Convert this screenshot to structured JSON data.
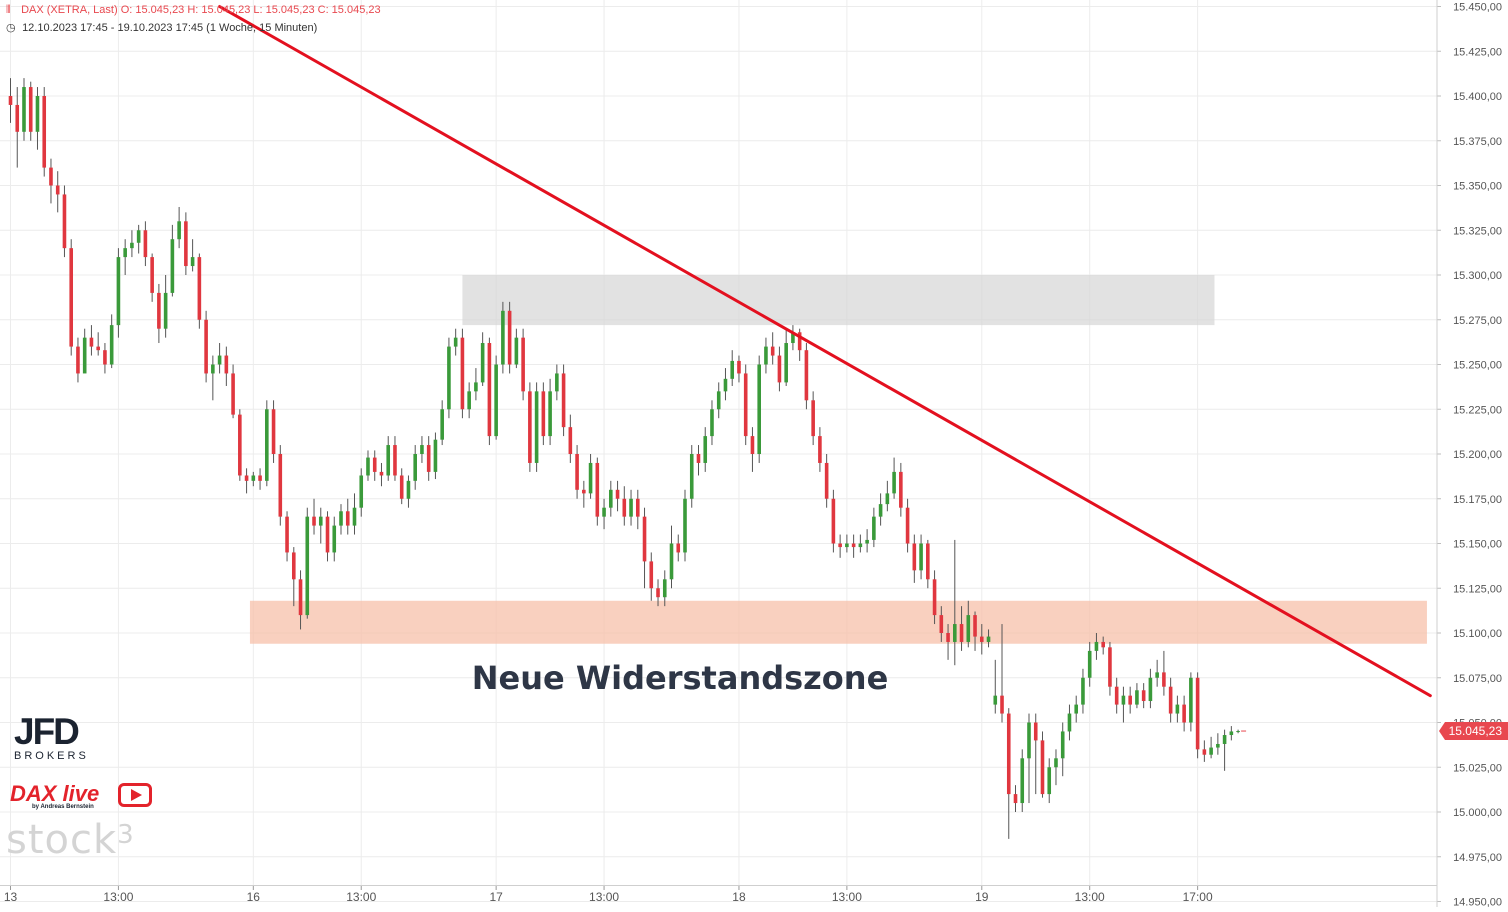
{
  "header": {
    "symbol_line": "DAX (XETRA, Last)  O: 15.045,23  H: 15.045,23  L: 15.045,23  C: 15.045,23",
    "range_line": "12.10.2023 17:45 - 19.10.2023 17:45   (1 Woche, 15 Minuten)"
  },
  "logos": {
    "jfd": "JFD",
    "jfd_sub": "BROKERS",
    "dax_live": "DAX live",
    "dax_live_sub": "by Andreas Bernstein",
    "stock3": "stock",
    "stock3_sup": "3"
  },
  "colors": {
    "up": "#3a9a3a",
    "down": "#e0373f",
    "trendline": "#e3101f",
    "resistance_zone": "#f7c0aa",
    "upper_zone": "#d6d6d6",
    "grid": "#ececec",
    "annotation": "#2e3646",
    "price_badge": "#e8484f"
  },
  "chart_data": {
    "type": "candlestick",
    "instrument": "DAX (XETRA, Last)",
    "interval": "15 Minuten",
    "ylim": [
      14950,
      15450
    ],
    "y_ticks": [
      "15.450,00",
      "15.425,00",
      "15.400,00",
      "15.375,00",
      "15.350,00",
      "15.325,00",
      "15.300,00",
      "15.275,00",
      "15.250,00",
      "15.225,00",
      "15.200,00",
      "15.175,00",
      "15.150,00",
      "15.125,00",
      "15.100,00",
      "15.075,00",
      "15.050,00",
      "15.025,00",
      "15.000,00",
      "14.975,00",
      "14.950,00"
    ],
    "x_ticks": [
      {
        "label": "13",
        "bar": 0
      },
      {
        "label": "13:00",
        "bar": 16
      },
      {
        "label": "16",
        "bar": 36
      },
      {
        "label": "13:00",
        "bar": 52
      },
      {
        "label": "17",
        "bar": 72
      },
      {
        "label": "13:00",
        "bar": 88
      },
      {
        "label": "18",
        "bar": 108
      },
      {
        "label": "13:00",
        "bar": 124
      },
      {
        "label": "19",
        "bar": 144
      },
      {
        "label": "13:00",
        "bar": 160
      },
      {
        "label": "17:00",
        "bar": 176
      }
    ],
    "last_price": 15045.23,
    "last_price_label": "15.045,23",
    "annotations": [
      {
        "type": "zone",
        "label": "",
        "y_from": 15272,
        "y_to": 15300,
        "bar_from": 67,
        "bar_to": 178.5
      },
      {
        "type": "zone",
        "label": "Neue Widerstandszone",
        "y_from": 15094,
        "y_to": 15118,
        "bar_from": 35.5,
        "bar_to": 210
      }
    ],
    "zone_label": "Neue Widerstandszone",
    "trendline": {
      "from": {
        "bar": 31,
        "y": 15450
      },
      "to": {
        "bar": 210.5,
        "y": 15065
      }
    },
    "candles": [
      [
        15400,
        15395,
        15410,
        15385
      ],
      [
        15395,
        15380,
        15405,
        15360
      ],
      [
        15380,
        15405,
        15410,
        15375
      ],
      [
        15405,
        15380,
        15408,
        15375
      ],
      [
        15380,
        15400,
        15405,
        15370
      ],
      [
        15400,
        15360,
        15405,
        15355
      ],
      [
        15360,
        15350,
        15365,
        15340
      ],
      [
        15350,
        15345,
        15358,
        15335
      ],
      [
        15345,
        15315,
        15350,
        15310
      ],
      [
        15315,
        15260,
        15320,
        15255
      ],
      [
        15260,
        15245,
        15265,
        15240
      ],
      [
        15245,
        15265,
        15270,
        15258
      ],
      [
        15265,
        15260,
        15272,
        15255
      ],
      [
        15260,
        15258,
        15268,
        15255
      ],
      [
        15258,
        15250,
        15262,
        15245
      ],
      [
        15250,
        15272,
        15278,
        15248
      ],
      [
        15272,
        15310,
        15315,
        15265
      ],
      [
        15310,
        15315,
        15320,
        15300
      ],
      [
        15315,
        15318,
        15325,
        15310
      ],
      [
        15318,
        15325,
        15328,
        15312
      ],
      [
        15325,
        15310,
        15330,
        15305
      ],
      [
        15310,
        15290,
        15312,
        15285
      ],
      [
        15290,
        15270,
        15295,
        15262
      ],
      [
        15270,
        15290,
        15300,
        15265
      ],
      [
        15290,
        15320,
        15328,
        15288
      ],
      [
        15320,
        15330,
        15338,
        15315
      ],
      [
        15330,
        15305,
        15335,
        15300
      ],
      [
        15305,
        15310,
        15320,
        15302
      ],
      [
        15310,
        15275,
        15312,
        15270
      ],
      [
        15275,
        15245,
        15280,
        15240
      ],
      [
        15245,
        15250,
        15255,
        15230
      ],
      [
        15250,
        15255,
        15262,
        15245
      ],
      [
        15255,
        15245,
        15260,
        15238
      ],
      [
        15245,
        15222,
        15250,
        15220
      ],
      [
        15222,
        15188,
        15225,
        15185
      ],
      [
        15188,
        15185,
        15192,
        15178
      ],
      [
        15185,
        15188,
        15190,
        15182
      ],
      [
        15188,
        15185,
        15192,
        15180
      ],
      [
        15185,
        15225,
        15230,
        15182
      ],
      [
        15225,
        15200,
        15230,
        15195
      ],
      [
        15200,
        15165,
        15205,
        15160
      ],
      [
        15165,
        15145,
        15168,
        15140
      ],
      [
        15145,
        15130,
        15148,
        15115
      ],
      [
        15130,
        15110,
        15135,
        15102
      ],
      [
        15110,
        15165,
        15170,
        15108
      ],
      [
        15165,
        15160,
        15175,
        15155
      ],
      [
        15160,
        15165,
        15170,
        15150
      ],
      [
        15165,
        15145,
        15168,
        15140
      ],
      [
        15145,
        15160,
        15165,
        15140
      ],
      [
        15160,
        15168,
        15172,
        15155
      ],
      [
        15168,
        15160,
        15175,
        15155
      ],
      [
        15160,
        15170,
        15178,
        15155
      ],
      [
        15170,
        15188,
        15192,
        15165
      ],
      [
        15188,
        15198,
        15202,
        15185
      ],
      [
        15198,
        15190,
        15202,
        15185
      ],
      [
        15190,
        15188,
        15195,
        15182
      ],
      [
        15188,
        15205,
        15210,
        15185
      ],
      [
        15205,
        15188,
        15210,
        15185
      ],
      [
        15188,
        15175,
        15192,
        15172
      ],
      [
        15175,
        15185,
        15188,
        15170
      ],
      [
        15185,
        15200,
        15205,
        15180
      ],
      [
        15200,
        15205,
        15210,
        15195
      ],
      [
        15205,
        15190,
        15210,
        15185
      ],
      [
        15190,
        15208,
        15212,
        15186
      ],
      [
        15208,
        15225,
        15230,
        15205
      ],
      [
        15225,
        15260,
        15265,
        15220
      ],
      [
        15260,
        15265,
        15270,
        15255
      ],
      [
        15265,
        15225,
        15270,
        15220
      ],
      [
        15225,
        15235,
        15240,
        15220
      ],
      [
        15235,
        15240,
        15248,
        15230
      ],
      [
        15240,
        15262,
        15268,
        15238
      ],
      [
        15262,
        15210,
        15265,
        15205
      ],
      [
        15210,
        15250,
        15255,
        15208
      ],
      [
        15250,
        15280,
        15285,
        15245
      ],
      [
        15280,
        15250,
        15285,
        15245
      ],
      [
        15250,
        15265,
        15270,
        15248
      ],
      [
        15265,
        15235,
        15270,
        15230
      ],
      [
        15235,
        15195,
        15240,
        15190
      ],
      [
        15195,
        15235,
        15240,
        15190
      ],
      [
        15235,
        15210,
        15240,
        15205
      ],
      [
        15210,
        15235,
        15242,
        15205
      ],
      [
        15235,
        15245,
        15250,
        15230
      ],
      [
        15245,
        15215,
        15250,
        15210
      ],
      [
        15215,
        15200,
        15222,
        15195
      ],
      [
        15200,
        15180,
        15205,
        15175
      ],
      [
        15180,
        15178,
        15185,
        15170
      ],
      [
        15178,
        15195,
        15200,
        15175
      ],
      [
        15195,
        15165,
        15198,
        15160
      ],
      [
        15165,
        15170,
        15175,
        15158
      ],
      [
        15170,
        15180,
        15185,
        15165
      ],
      [
        15180,
        15175,
        15185,
        15168
      ],
      [
        15175,
        15165,
        15182,
        15160
      ],
      [
        15165,
        15175,
        15180,
        15160
      ],
      [
        15175,
        15165,
        15180,
        15158
      ],
      [
        15165,
        15140,
        15170,
        15125
      ],
      [
        15140,
        15125,
        15145,
        15118
      ],
      [
        15125,
        15120,
        15130,
        15115
      ],
      [
        15120,
        15130,
        15135,
        15115
      ],
      [
        15130,
        15150,
        15160,
        15125
      ],
      [
        15150,
        15145,
        15155,
        15140
      ],
      [
        15145,
        15175,
        15180,
        15140
      ],
      [
        15175,
        15200,
        15205,
        15170
      ],
      [
        15200,
        15195,
        15205,
        15188
      ],
      [
        15195,
        15210,
        15215,
        15190
      ],
      [
        15210,
        15225,
        15230,
        15205
      ],
      [
        15225,
        15235,
        15240,
        15220
      ],
      [
        15235,
        15242,
        15248,
        15230
      ],
      [
        15242,
        15252,
        15258,
        15238
      ],
      [
        15252,
        15245,
        15255,
        15240
      ],
      [
        15245,
        15210,
        15250,
        15205
      ],
      [
        15210,
        15200,
        15215,
        15190
      ],
      [
        15200,
        15250,
        15255,
        15195
      ],
      [
        15250,
        15260,
        15265,
        15245
      ],
      [
        15260,
        15255,
        15268,
        15250
      ],
      [
        15255,
        15240,
        15260,
        15235
      ],
      [
        15240,
        15262,
        15270,
        15238
      ],
      [
        15262,
        15268,
        15272,
        15258
      ],
      [
        15268,
        15258,
        15270,
        15252
      ],
      [
        15258,
        15230,
        15262,
        15225
      ],
      [
        15230,
        15210,
        15235,
        15205
      ],
      [
        15210,
        15195,
        15215,
        15190
      ],
      [
        15195,
        15175,
        15200,
        15170
      ],
      [
        15175,
        15150,
        15180,
        15145
      ],
      [
        15150,
        15148,
        15155,
        15142
      ],
      [
        15148,
        15150,
        15155,
        15145
      ],
      [
        15150,
        15148,
        15155,
        15142
      ],
      [
        15148,
        15150,
        15155,
        15145
      ],
      [
        15150,
        15152,
        15158,
        15145
      ],
      [
        15152,
        15165,
        15170,
        15148
      ],
      [
        15165,
        15172,
        15178,
        15160
      ],
      [
        15172,
        15178,
        15185,
        15168
      ],
      [
        15178,
        15190,
        15198,
        15175
      ],
      [
        15190,
        15170,
        15195,
        15165
      ],
      [
        15170,
        15150,
        15175,
        15145
      ],
      [
        15150,
        15135,
        15155,
        15128
      ],
      [
        15135,
        15150,
        15155,
        15130
      ],
      [
        15150,
        15130,
        15152,
        15125
      ],
      [
        15130,
        15110,
        15135,
        15105
      ],
      [
        15110,
        15100,
        15115,
        15095
      ],
      [
        15100,
        15095,
        15105,
        15085
      ],
      [
        15095,
        15105,
        15152,
        15082
      ],
      [
        15105,
        15095,
        15115,
        15090
      ],
      [
        15095,
        15110,
        15118,
        15092
      ],
      [
        15110,
        15098,
        15112,
        15090
      ],
      [
        15098,
        15095,
        15105,
        15088
      ],
      [
        15095,
        15098,
        15102,
        15092
      ],
      [
        15060,
        15065,
        15085,
        15055
      ],
      [
        15065,
        15055,
        15105,
        15050
      ],
      [
        15055,
        15010,
        15058,
        14985
      ],
      [
        15010,
        15005,
        15015,
        15000
      ],
      [
        15005,
        15030,
        15035,
        15000
      ],
      [
        15030,
        15050,
        15055,
        15005
      ],
      [
        15050,
        15040,
        15055,
        15010
      ],
      [
        15040,
        15010,
        15045,
        15008
      ],
      [
        15010,
        15025,
        15030,
        15005
      ],
      [
        15025,
        15030,
        15035,
        15015
      ],
      [
        15030,
        15045,
        15050,
        15020
      ],
      [
        15045,
        15055,
        15060,
        15040
      ],
      [
        15055,
        15060,
        15065,
        15050
      ],
      [
        15060,
        15075,
        15080,
        15055
      ],
      [
        15075,
        15090,
        15095,
        15070
      ],
      [
        15090,
        15095,
        15100,
        15085
      ],
      [
        15095,
        15092,
        15098,
        15088
      ],
      [
        15092,
        15070,
        15095,
        15065
      ],
      [
        15070,
        15060,
        15075,
        15055
      ],
      [
        15060,
        15065,
        15070,
        15050
      ],
      [
        15065,
        15060,
        15070,
        15055
      ],
      [
        15060,
        15068,
        15072,
        15058
      ],
      [
        15068,
        15062,
        15072,
        15058
      ],
      [
        15062,
        15075,
        15080,
        15058
      ],
      [
        15075,
        15078,
        15085,
        15070
      ],
      [
        15078,
        15070,
        15090,
        15065
      ],
      [
        15070,
        15055,
        15075,
        15050
      ],
      [
        15055,
        15060,
        15065,
        15050
      ],
      [
        15060,
        15050,
        15065,
        15045
      ],
      [
        15050,
        15075,
        15078,
        15045
      ],
      [
        15075,
        15035,
        15078,
        15030
      ],
      [
        15035,
        15032,
        15040,
        15028
      ],
      [
        15032,
        15036,
        15042,
        15030
      ],
      [
        15036,
        15038,
        15044,
        15032
      ],
      [
        15038,
        15043,
        15046,
        15023
      ],
      [
        15043,
        15045,
        15048,
        15040
      ],
      [
        15045,
        15045.23,
        15046,
        15044
      ]
    ]
  }
}
